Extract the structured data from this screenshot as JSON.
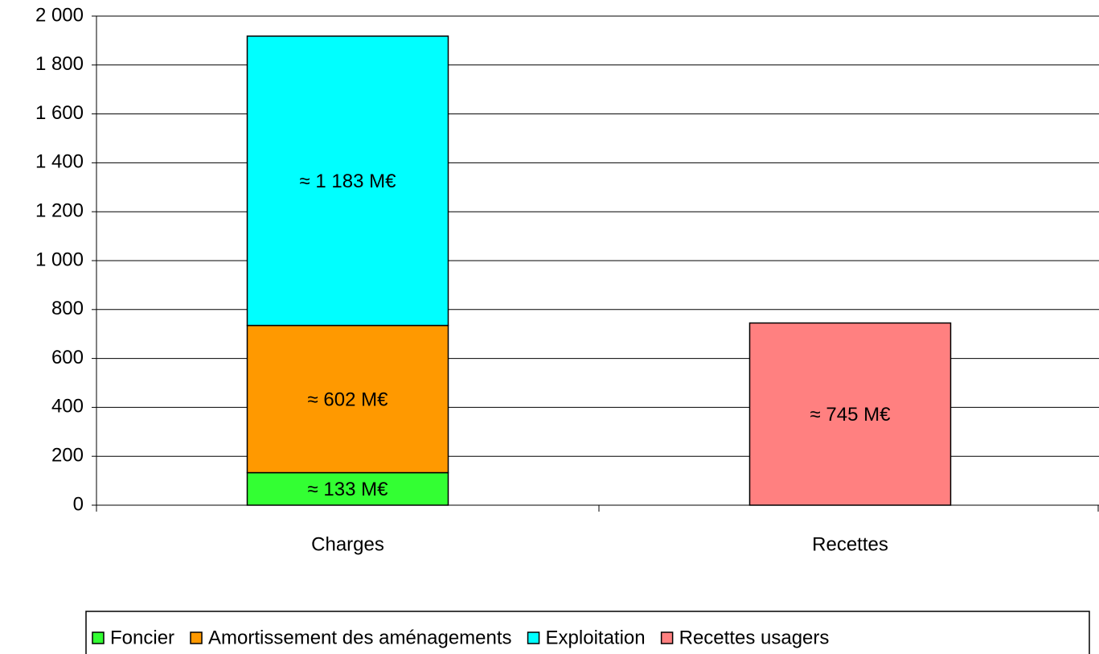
{
  "chart_data": {
    "type": "stacked-bar",
    "categories": [
      "Charges",
      "Recettes"
    ],
    "series": [
      {
        "name": "Foncier",
        "color": "#33ff33",
        "values": [
          133,
          null
        ],
        "value_labels": [
          "≈ 133 M€",
          null
        ]
      },
      {
        "name": "Amortissement des aménagements",
        "color": "#ff9900",
        "values": [
          602,
          null
        ],
        "value_labels": [
          "≈ 602 M€",
          null
        ]
      },
      {
        "name": "Exploitation",
        "color": "#00ffff",
        "values": [
          1183,
          null
        ],
        "value_labels": [
          "≈ 1 183 M€",
          null
        ]
      },
      {
        "name": "Recettes usagers",
        "color": "#ff8080",
        "values": [
          null,
          745
        ],
        "value_labels": [
          null,
          "≈ 745 M€"
        ]
      }
    ],
    "ylim": [
      0,
      2000
    ],
    "yticks": [
      0,
      200,
      400,
      600,
      800,
      {
        "value": 1000,
        "label": "1 000"
      },
      {
        "value": 1200,
        "label": "1 200"
      },
      {
        "value": 1400,
        "label": "1 400"
      },
      {
        "value": 1600,
        "label": "1 600"
      },
      {
        "value": 1800,
        "label": "1 800"
      },
      {
        "value": 2000,
        "label": "2 000"
      }
    ],
    "grid": true,
    "legend": "bottom"
  }
}
